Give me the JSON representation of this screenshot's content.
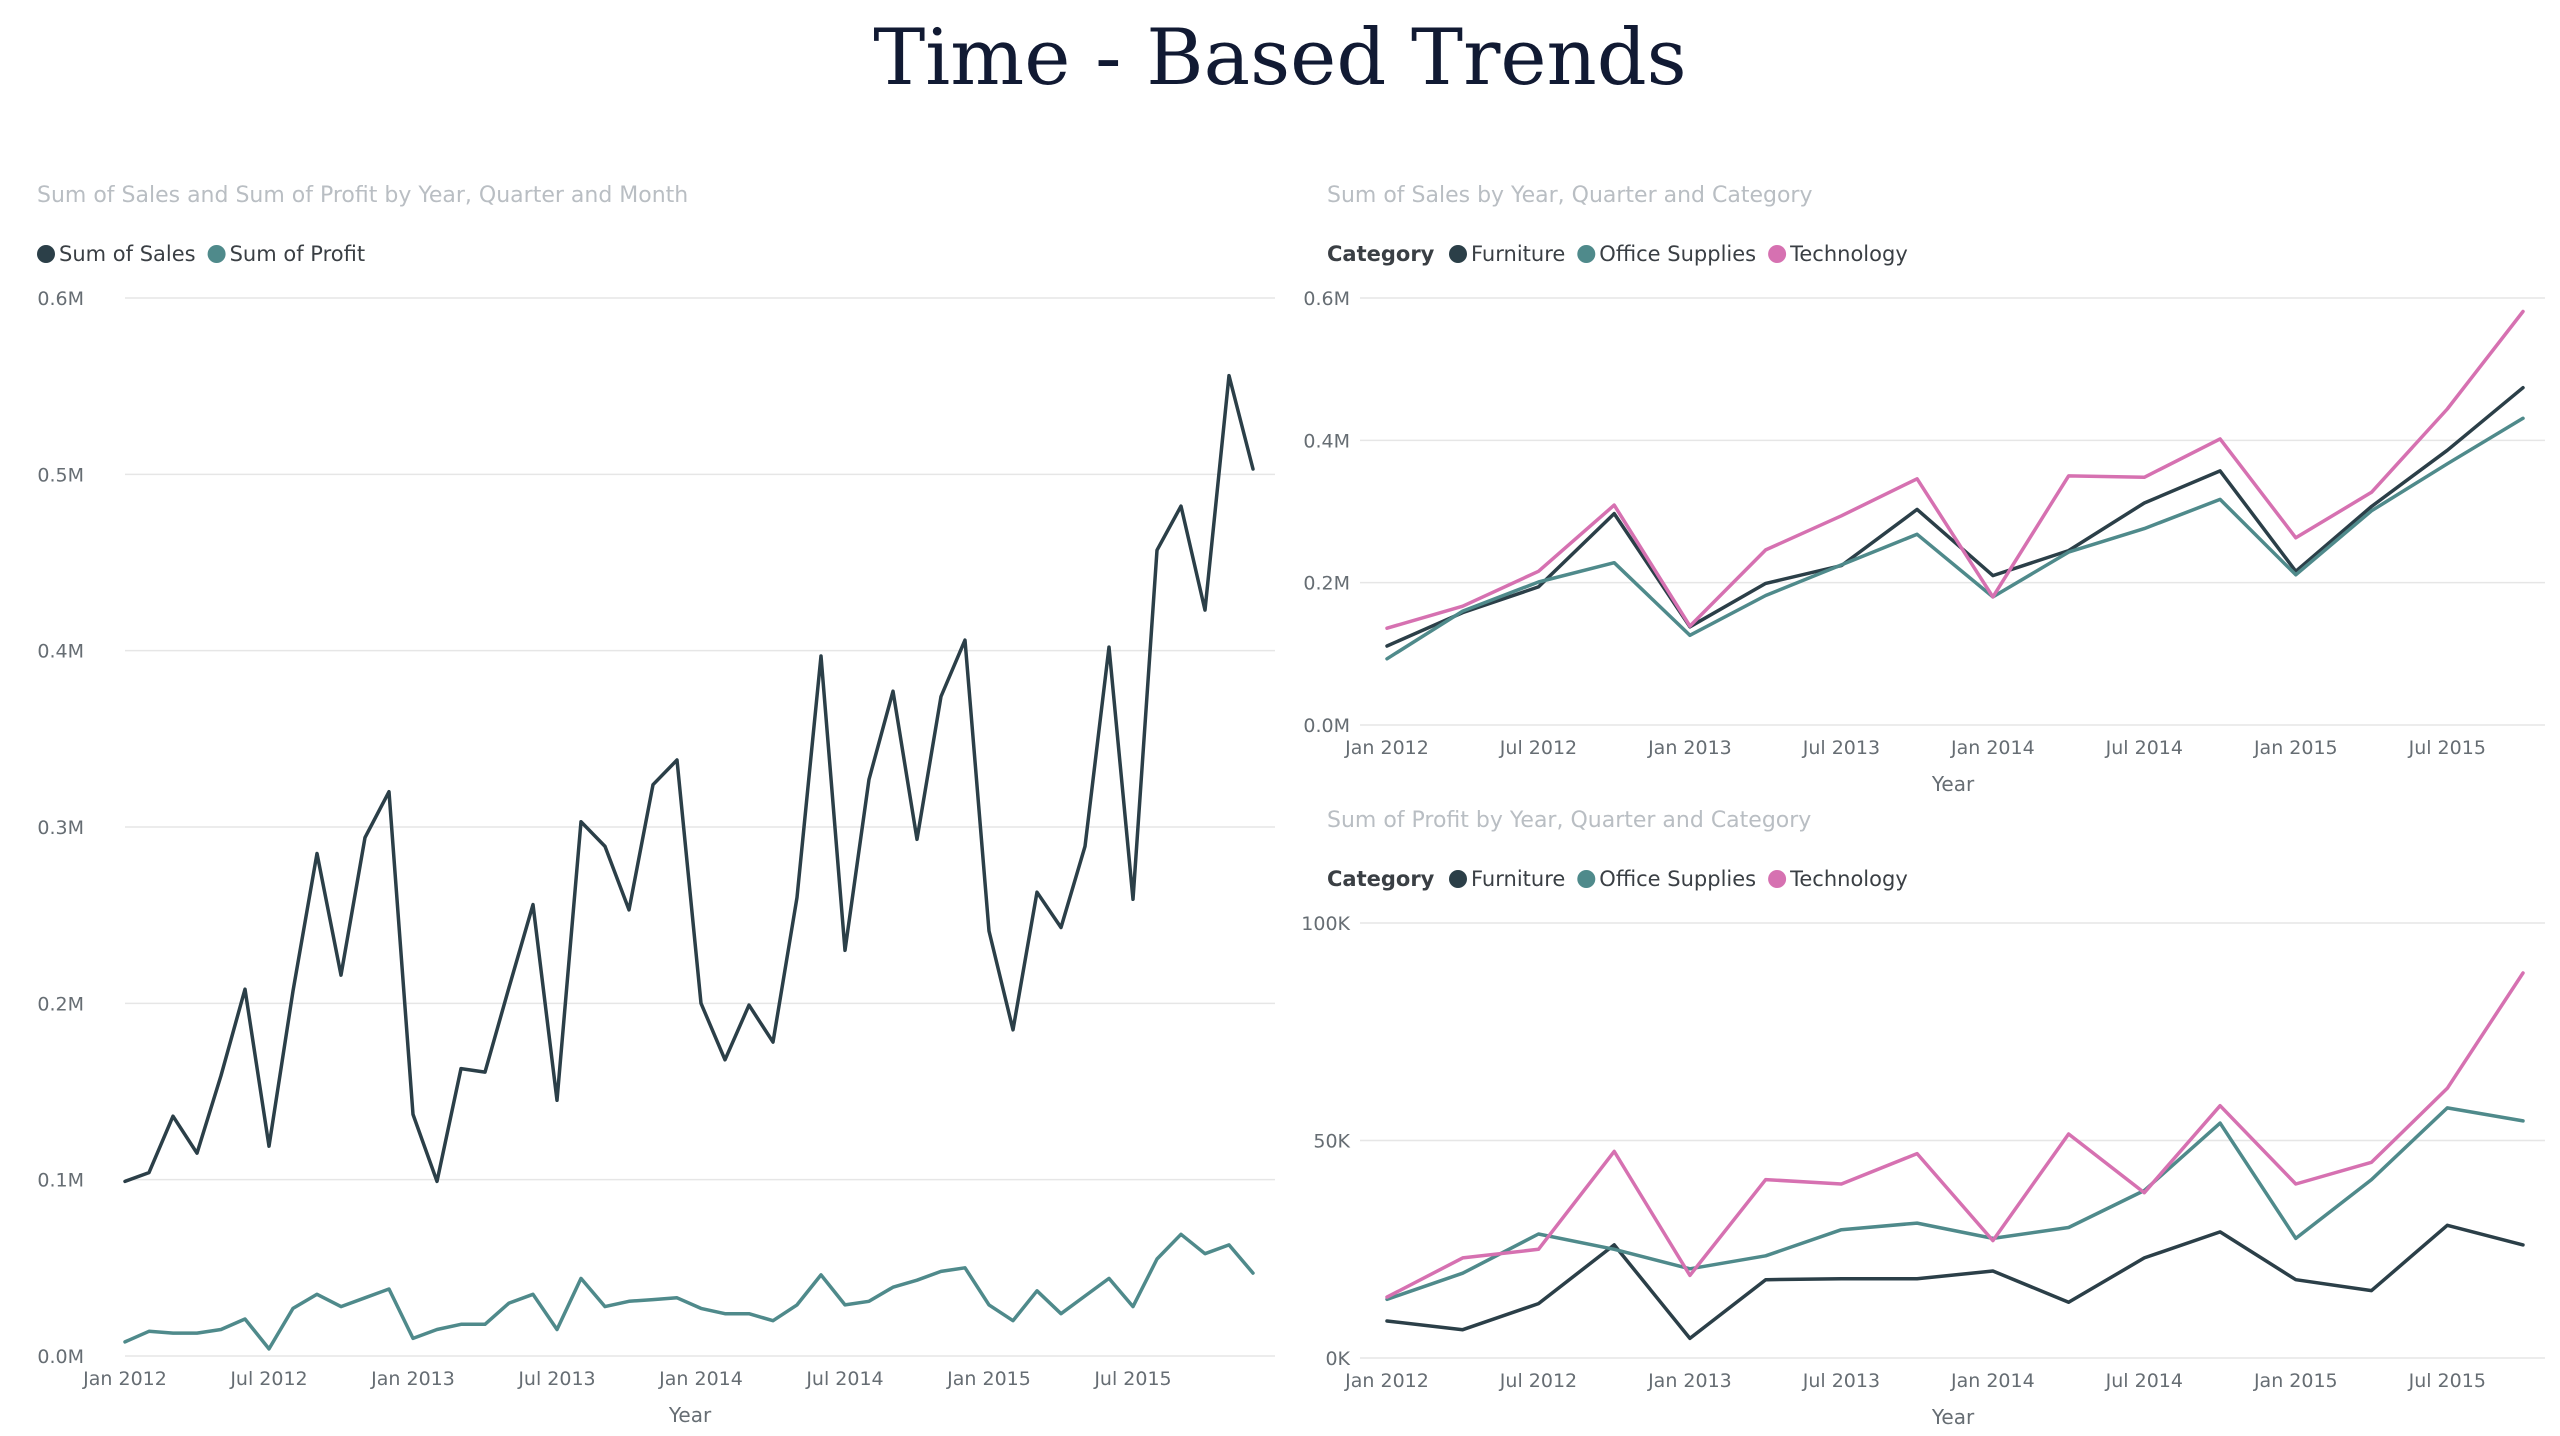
{
  "page": {
    "title": "Time - Based Trends"
  },
  "colors": {
    "dark": "#2b3f48",
    "teal": "#4f8a8b",
    "pink": "#d671b1"
  },
  "chart_data": [
    {
      "type": "line",
      "title": "Sum of Sales and Sum of Profit by Year, Quarter and Month",
      "legend_title": "",
      "xlabel": "Year",
      "x_ticks": [
        "Jan 2012",
        "Jul 2012",
        "Jan 2013",
        "Jul 2013",
        "Jan 2014",
        "Jul 2014",
        "Jan 2015",
        "Jul 2015"
      ],
      "y_ticks": [
        "0.0M",
        "0.1M",
        "0.2M",
        "0.3M",
        "0.4M",
        "0.5M",
        "0.6M"
      ],
      "ylim": [
        0,
        600000
      ],
      "x_count": 48,
      "x_spacing": 6,
      "grid": true,
      "legend_position": "top-left",
      "series": [
        {
          "name": "Sum of Sales",
          "color": "#2b3f48",
          "values": [
            99000,
            104000,
            136000,
            115000,
            159000,
            208000,
            119000,
            207000,
            285000,
            216000,
            294000,
            320000,
            137000,
            99000,
            163000,
            161000,
            209000,
            256000,
            145000,
            303000,
            289000,
            253000,
            324000,
            338000,
            200000,
            168000,
            199000,
            178000,
            260000,
            397000,
            230000,
            327000,
            377000,
            293000,
            374000,
            406000,
            241000,
            185000,
            263000,
            243000,
            289000,
            402000,
            259000,
            457000,
            482000,
            423000,
            556000,
            503000
          ]
        },
        {
          "name": "Sum of Profit",
          "color": "#4f8a8b",
          "values": [
            8000,
            14000,
            13000,
            13000,
            15000,
            21000,
            4000,
            27000,
            35000,
            28000,
            33000,
            38000,
            10000,
            15000,
            18000,
            18000,
            30000,
            35000,
            15000,
            44000,
            28000,
            31000,
            32000,
            33000,
            27000,
            24000,
            24000,
            20000,
            29000,
            46000,
            29000,
            31000,
            39000,
            43000,
            48000,
            50000,
            29000,
            20000,
            37000,
            24000,
            34000,
            44000,
            28000,
            55000,
            69000,
            58000,
            63000,
            47000
          ]
        }
      ]
    },
    {
      "type": "line",
      "title": "Sum of Sales by Year, Quarter and Category",
      "legend_title": "Category",
      "xlabel": "Year",
      "x_ticks": [
        "Jan 2012",
        "Jul 2012",
        "Jan 2013",
        "Jul 2013",
        "Jan 2014",
        "Jul 2014",
        "Jan 2015",
        "Jul 2015"
      ],
      "y_ticks": [
        "0.0M",
        "0.2M",
        "0.4M",
        "0.6M"
      ],
      "ylim": [
        0,
        600000
      ],
      "x_count": 16,
      "x_spacing": 2,
      "grid": true,
      "legend_position": "top-left",
      "series": [
        {
          "name": "Furniture",
          "color": "#2b3f48",
          "values": [
            111000,
            158000,
            194000,
            297000,
            138000,
            199000,
            224000,
            303000,
            210000,
            245000,
            312000,
            357000,
            216000,
            307000,
            386000,
            474000
          ]
        },
        {
          "name": "Office Supplies",
          "color": "#4f8a8b",
          "values": [
            93000,
            160000,
            201000,
            228000,
            126000,
            182000,
            225000,
            268000,
            180000,
            243000,
            276000,
            317000,
            211000,
            301000,
            367000,
            431000
          ]
        },
        {
          "name": "Technology",
          "color": "#d671b1",
          "values": [
            136000,
            167000,
            216000,
            309000,
            139000,
            246000,
            294000,
            346000,
            180000,
            350000,
            348000,
            402000,
            263000,
            327000,
            444000,
            581000
          ]
        }
      ]
    },
    {
      "type": "line",
      "title": "Sum of Profit by Year, Quarter and Category",
      "legend_title": "Category",
      "xlabel": "Year",
      "x_ticks": [
        "Jan 2012",
        "Jul 2012",
        "Jan 2013",
        "Jul 2013",
        "Jan 2014",
        "Jul 2014",
        "Jan 2015",
        "Jul 2015"
      ],
      "y_ticks": [
        "0K",
        "50K",
        "100K"
      ],
      "ylim": [
        0,
        100000
      ],
      "x_count": 16,
      "x_spacing": 2,
      "grid": true,
      "legend_position": "top-left",
      "series": [
        {
          "name": "Furniture",
          "color": "#2b3f48",
          "values": [
            8500,
            6500,
            12500,
            26000,
            4500,
            18000,
            18200,
            18200,
            20000,
            12800,
            23000,
            29000,
            18000,
            15500,
            30500,
            26000
          ]
        },
        {
          "name": "Office Supplies",
          "color": "#4f8a8b",
          "values": [
            13500,
            19500,
            28500,
            25000,
            20500,
            23500,
            29500,
            31000,
            27500,
            30000,
            38500,
            54000,
            27500,
            41000,
            57500,
            54500
          ]
        },
        {
          "name": "Technology",
          "color": "#d671b1",
          "values": [
            14000,
            23000,
            25000,
            47500,
            19000,
            41000,
            40000,
            47000,
            27000,
            51500,
            38000,
            58000,
            40000,
            45000,
            62000,
            88500
          ]
        }
      ]
    }
  ]
}
